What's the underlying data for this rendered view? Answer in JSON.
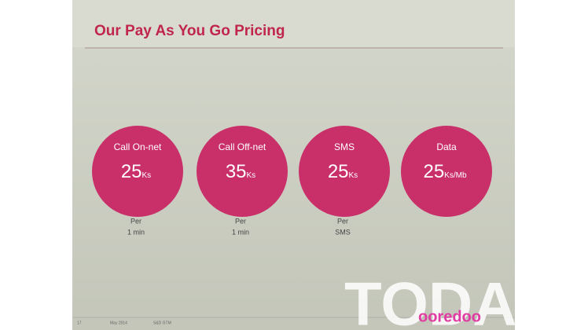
{
  "header": {
    "title": "Our Pay As You Go Pricing"
  },
  "items": [
    {
      "label": "Call On-net",
      "price": 25,
      "unit": "Ks",
      "note": [
        "Per",
        "1 min"
      ]
    },
    {
      "label": "Call Off-net",
      "price": 35,
      "unit": "Ks",
      "note": [
        "Per",
        "1 min"
      ]
    },
    {
      "label": "SMS",
      "price": 25,
      "unit": "Ks",
      "note": [
        "Per",
        "SMS"
      ]
    },
    {
      "label": "Data",
      "price": 25,
      "unit": "Ks/Mb",
      "note": []
    }
  ],
  "footer": {
    "page": "17",
    "date": "May 2014",
    "dept": "S&D GTM"
  },
  "watermark": {
    "text": "TODA",
    "logo": "ooredoo"
  }
}
